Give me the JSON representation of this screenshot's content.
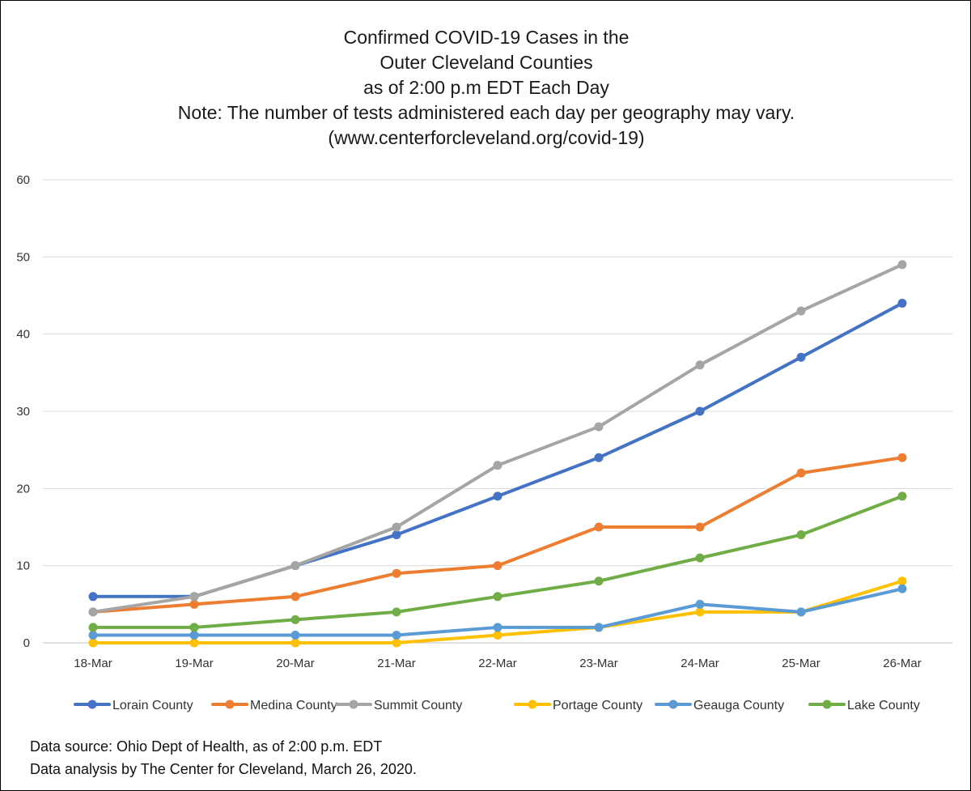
{
  "chart_data": {
    "type": "line",
    "title_lines": [
      "Confirmed COVID-19 Cases in the",
      "Outer Cleveland Counties",
      "as of 2:00 p.m EDT Each Day",
      "Note: The number of tests administered each day per geography may vary.",
      "(www.centerforcleveland.org/covid-19)"
    ],
    "categories": [
      "18-Mar",
      "19-Mar",
      "20-Mar",
      "21-Mar",
      "22-Mar",
      "23-Mar",
      "24-Mar",
      "25-Mar",
      "26-Mar"
    ],
    "ylim": [
      0,
      60
    ],
    "yticks": [
      0,
      10,
      20,
      30,
      40,
      50,
      60
    ],
    "grid": true,
    "legend_position": "bottom",
    "series": [
      {
        "name": "Lorain County",
        "color": "#4472C4",
        "values": [
          6,
          6,
          10,
          14,
          19,
          24,
          30,
          37,
          44
        ]
      },
      {
        "name": "Medina County",
        "color": "#ED7D31",
        "values": [
          4,
          5,
          6,
          9,
          10,
          15,
          15,
          22,
          24
        ]
      },
      {
        "name": "Summit County",
        "color": "#A5A5A5",
        "values": [
          4,
          6,
          10,
          15,
          23,
          28,
          36,
          43,
          49
        ]
      },
      {
        "name": "Portage County",
        "color": "#FFC000",
        "values": [
          0,
          0,
          0,
          0,
          1,
          2,
          4,
          4,
          8
        ]
      },
      {
        "name": "Geauga County",
        "color": "#5B9BD5",
        "values": [
          1,
          1,
          1,
          1,
          2,
          2,
          5,
          4,
          7
        ]
      },
      {
        "name": "Lake County",
        "color": "#70AD47",
        "values": [
          2,
          2,
          3,
          4,
          6,
          8,
          11,
          14,
          19
        ]
      }
    ]
  },
  "footnotes": {
    "source": "Data source:  Ohio Dept of Health, as of 2:00 p.m. EDT",
    "analysis": "Data analysis by The Center for Cleveland,  March 26, 2020."
  }
}
